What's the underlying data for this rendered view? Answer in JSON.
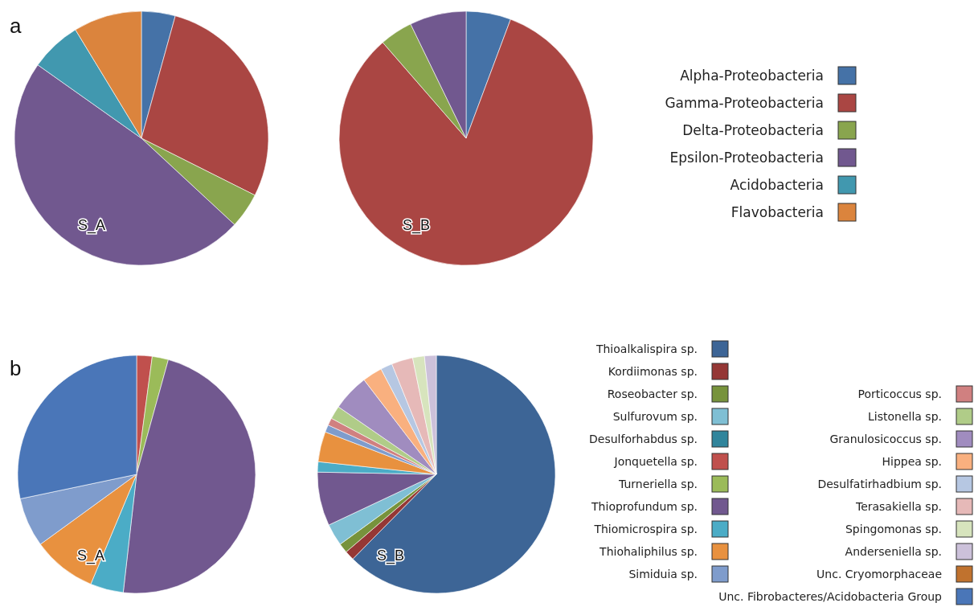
{
  "chart_data": [
    {
      "type": "pie",
      "annotations": [
        "a"
      ],
      "legend": "right",
      "categories": [
        "Alpha-Proteobacteria",
        "Gamma-Proteobacteria",
        "Delta-Proteobacteria",
        "Epsilon-Proteobacteria",
        "Acidobacteria",
        "Flavobacteria"
      ],
      "colors": [
        "#4572a7",
        "#aa4643",
        "#89a54e",
        "#71588f",
        "#4198af",
        "#db843d"
      ],
      "series": [
        {
          "name": "S_A",
          "values": [
            4.3,
            28.1,
            4.5,
            47.9,
            6.5,
            8.7
          ]
        },
        {
          "name": "S_B",
          "values": [
            5.7,
            82.9,
            4.2,
            7.2,
            0,
            0
          ]
        }
      ]
    },
    {
      "type": "pie",
      "annotations": [
        "b"
      ],
      "legend": "right",
      "categories": [
        "Thioalkalispira sp.",
        "Kordiimonas sp.",
        "Roseobacter sp.",
        "Sulfurovum sp.",
        "Desulforhabdus sp.",
        "Jonquetella sp.",
        "Turneriella sp.",
        "Thioprofundum sp.",
        "Thiomicrospira sp.",
        "Thiohaliphilus sp.",
        "Simiduia sp.",
        "Porticoccus sp.",
        "Listonella sp.",
        "Granulosicoccus sp.",
        "Hippea sp.",
        "Desulfatirhadbium sp.",
        "Terasakiella sp.",
        "Spingomonas sp.",
        "Anderseniella sp.",
        "Unc. Cryomorphaceae",
        "Unc. Fibrobacteres/Acidobacteria  Group"
      ],
      "colors": [
        "#3d6596",
        "#953735",
        "#77933c",
        "#7fbfd4",
        "#31859c",
        "#c0504d",
        "#9bbb59",
        "#71588f",
        "#4bacc6",
        "#e8913f",
        "#7f9ccc",
        "#d08080",
        "#b0cc88",
        "#a08cbf",
        "#f9b07f",
        "#b6c7e2",
        "#e6b9b8",
        "#d7e4bd",
        "#ccc1da",
        "#c0722e",
        "#4a76b8"
      ],
      "series": [
        {
          "name": "S_A",
          "values": [
            0,
            0,
            0,
            0,
            0,
            2.1,
            2.2,
            47.5,
            4.5,
            8.7,
            6.7,
            0,
            0,
            0,
            0,
            0,
            0,
            0,
            0,
            0,
            28.3
          ]
        },
        {
          "name": "S_B",
          "values": [
            62.4,
            1.3,
            1.3,
            3.0,
            0,
            0,
            0,
            7.3,
            1.4,
            4.1,
            1.0,
            1.0,
            1.8,
            5.0,
            2.7,
            1.6,
            2.9,
            1.6,
            1.6,
            0,
            0
          ]
        }
      ]
    }
  ]
}
